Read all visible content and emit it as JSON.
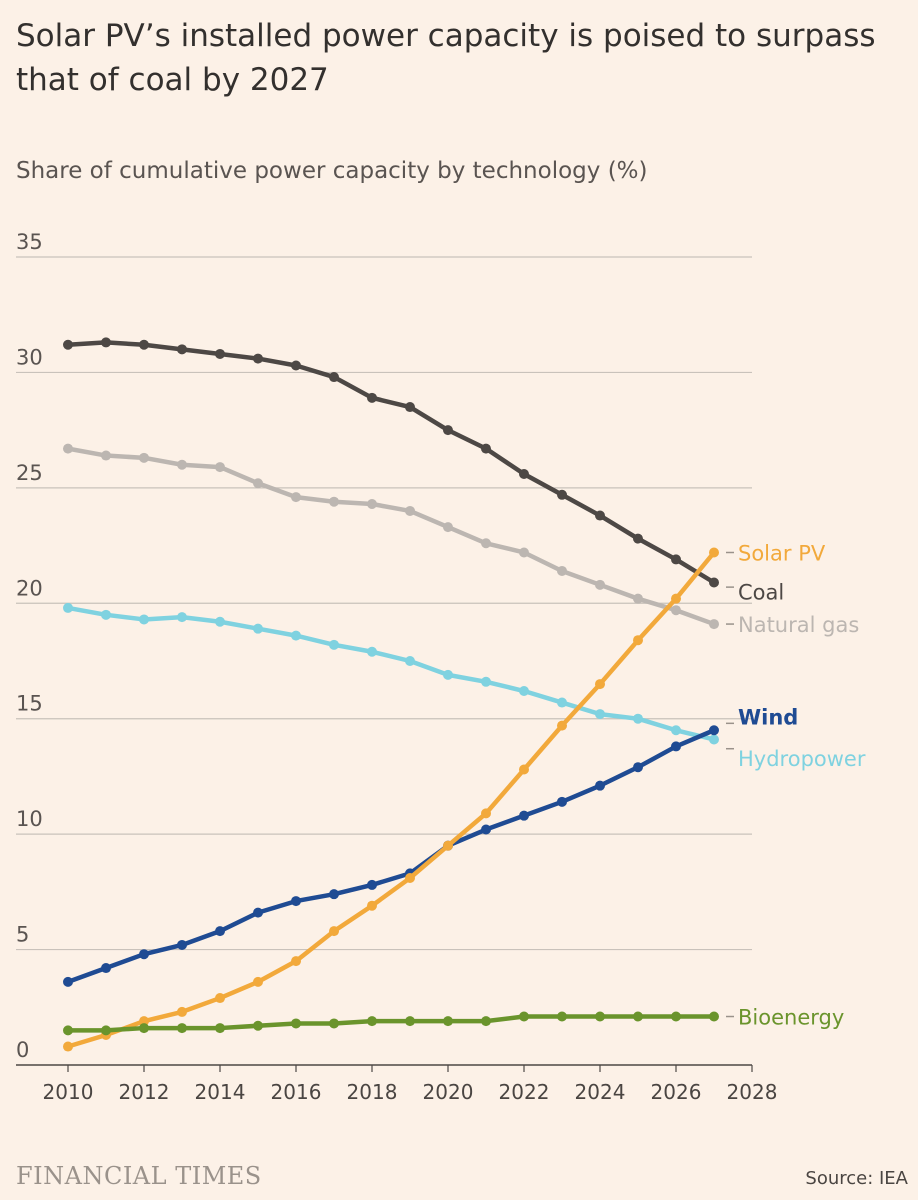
{
  "chart_data": {
    "type": "line",
    "title": "Solar PV’s installed power capacity is poised to surpass that of coal by 2027",
    "subtitle": "Share of cumulative power capacity by technology (%)",
    "xlabel": "",
    "ylabel": "",
    "xlim": [
      2010,
      2028
    ],
    "ylim": [
      0,
      35
    ],
    "xticks": [
      2010,
      2012,
      2014,
      2016,
      2018,
      2020,
      2022,
      2024,
      2026,
      2028
    ],
    "yticks": [
      0,
      5,
      10,
      15,
      20,
      25,
      30,
      35
    ],
    "grid": "horizontal",
    "legend": "direct labels at line ends (right)",
    "x": [
      2010,
      2011,
      2012,
      2013,
      2014,
      2015,
      2016,
      2017,
      2018,
      2019,
      2020,
      2021,
      2022,
      2023,
      2024,
      2025,
      2026,
      2027
    ],
    "series": [
      {
        "name": "Coal",
        "color": "#4d4845",
        "values": [
          31.2,
          31.3,
          31.2,
          31.0,
          30.8,
          30.6,
          30.3,
          29.8,
          28.9,
          28.5,
          27.5,
          26.7,
          25.6,
          24.7,
          23.8,
          22.8,
          21.9,
          20.9
        ]
      },
      {
        "name": "Natural gas",
        "color": "#bcb6b1",
        "values": [
          26.7,
          26.4,
          26.3,
          26.0,
          25.9,
          25.2,
          24.6,
          24.4,
          24.3,
          24.0,
          23.3,
          22.6,
          22.2,
          21.4,
          20.8,
          20.2,
          19.7,
          19.1
        ]
      },
      {
        "name": "Hydropower",
        "color": "#7fd2e0",
        "values": [
          19.8,
          19.5,
          19.3,
          19.4,
          19.2,
          18.9,
          18.6,
          18.2,
          17.9,
          17.5,
          16.9,
          16.6,
          16.2,
          15.7,
          15.2,
          15.0,
          14.5,
          14.1
        ]
      },
      {
        "name": "Wind",
        "color": "#1f4b93",
        "values": [
          3.6,
          4.2,
          4.8,
          5.2,
          5.8,
          6.6,
          7.1,
          7.4,
          7.8,
          8.3,
          9.5,
          10.2,
          10.8,
          11.4,
          12.1,
          12.9,
          13.8,
          14.5
        ]
      },
      {
        "name": "Solar PV",
        "color": "#f2a93b",
        "values": [
          0.8,
          1.3,
          1.9,
          2.3,
          2.9,
          3.6,
          4.5,
          5.8,
          6.9,
          8.1,
          9.5,
          10.9,
          12.8,
          14.7,
          16.5,
          18.4,
          20.2,
          22.2
        ]
      },
      {
        "name": "Bioenergy",
        "color": "#6a942c",
        "values": [
          1.5,
          1.5,
          1.6,
          1.6,
          1.6,
          1.7,
          1.8,
          1.8,
          1.9,
          1.9,
          1.9,
          1.9,
          2.1,
          2.1,
          2.1,
          2.1,
          2.1,
          2.1
        ]
      }
    ]
  },
  "footer": {
    "brand": "FINANCIAL TIMES",
    "source": "Source: IEA"
  },
  "colors": {
    "background": "#fcf1e7",
    "grid": "#c9c2bb",
    "text": "#33302e"
  }
}
